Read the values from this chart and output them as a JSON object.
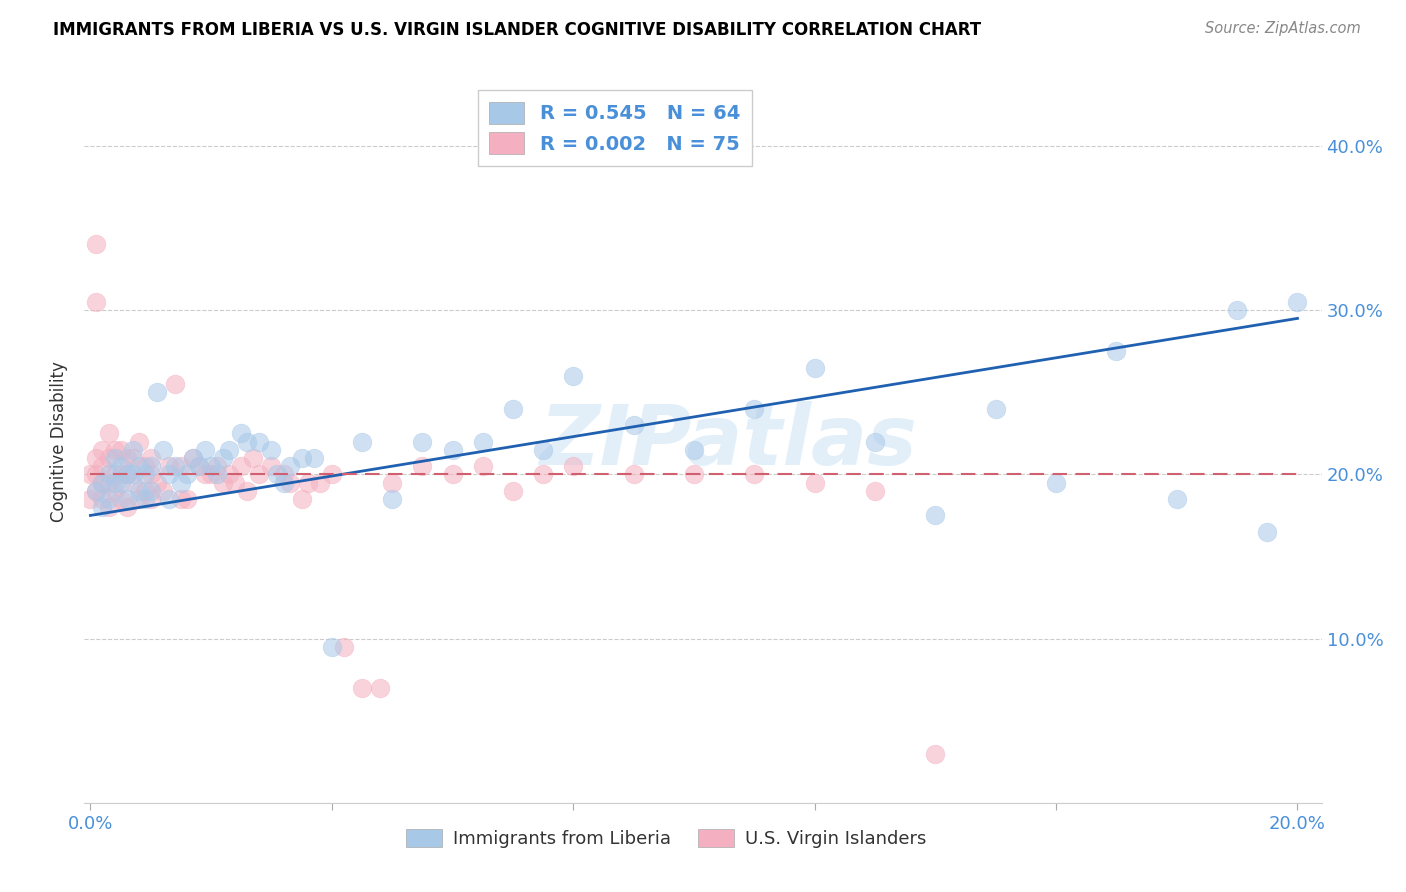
{
  "title": "IMMIGRANTS FROM LIBERIA VS U.S. VIRGIN ISLANDER COGNITIVE DISABILITY CORRELATION CHART",
  "source": "Source: ZipAtlas.com",
  "ylabel_label": "Cognitive Disability",
  "xlim": [
    -0.001,
    0.204
  ],
  "ylim": [
    0.0,
    0.44
  ],
  "blue_color": "#a8c8e8",
  "pink_color": "#f4b0c0",
  "trend_blue": "#2060b0",
  "trend_pink": "#d06070",
  "axis_color": "#4a90d9",
  "text_color": "#333333",
  "watermark": "ZIPatlas",
  "legend_R_blue": "0.545",
  "legend_N_blue": "64",
  "legend_R_pink": "0.002",
  "legend_N_pink": "75",
  "blue_x": [
    0.001,
    0.002,
    0.002,
    0.003,
    0.003,
    0.004,
    0.004,
    0.005,
    0.005,
    0.006,
    0.006,
    0.007,
    0.007,
    0.008,
    0.008,
    0.009,
    0.009,
    0.01,
    0.01,
    0.011,
    0.012,
    0.013,
    0.013,
    0.014,
    0.015,
    0.016,
    0.017,
    0.018,
    0.019,
    0.02,
    0.021,
    0.022,
    0.023,
    0.025,
    0.026,
    0.028,
    0.03,
    0.031,
    0.032,
    0.033,
    0.035,
    0.037,
    0.04,
    0.045,
    0.05,
    0.055,
    0.06,
    0.065,
    0.07,
    0.075,
    0.08,
    0.09,
    0.1,
    0.11,
    0.12,
    0.13,
    0.14,
    0.15,
    0.16,
    0.17,
    0.18,
    0.19,
    0.195,
    0.2
  ],
  "blue_y": [
    0.19,
    0.195,
    0.18,
    0.2,
    0.185,
    0.21,
    0.195,
    0.205,
    0.195,
    0.2,
    0.185,
    0.215,
    0.2,
    0.205,
    0.19,
    0.2,
    0.185,
    0.205,
    0.19,
    0.25,
    0.215,
    0.2,
    0.185,
    0.205,
    0.195,
    0.2,
    0.21,
    0.205,
    0.215,
    0.205,
    0.2,
    0.21,
    0.215,
    0.225,
    0.22,
    0.22,
    0.215,
    0.2,
    0.195,
    0.205,
    0.21,
    0.21,
    0.095,
    0.22,
    0.185,
    0.22,
    0.215,
    0.22,
    0.24,
    0.215,
    0.26,
    0.23,
    0.215,
    0.24,
    0.265,
    0.22,
    0.175,
    0.24,
    0.195,
    0.275,
    0.185,
    0.3,
    0.165,
    0.305
  ],
  "pink_x": [
    0.0,
    0.0,
    0.001,
    0.001,
    0.001,
    0.001,
    0.001,
    0.002,
    0.002,
    0.002,
    0.002,
    0.003,
    0.003,
    0.003,
    0.003,
    0.004,
    0.004,
    0.004,
    0.005,
    0.005,
    0.005,
    0.006,
    0.006,
    0.006,
    0.007,
    0.007,
    0.008,
    0.008,
    0.009,
    0.009,
    0.01,
    0.01,
    0.01,
    0.011,
    0.012,
    0.013,
    0.014,
    0.015,
    0.015,
    0.016,
    0.017,
    0.018,
    0.019,
    0.02,
    0.021,
    0.022,
    0.023,
    0.024,
    0.025,
    0.026,
    0.027,
    0.028,
    0.03,
    0.032,
    0.033,
    0.035,
    0.036,
    0.038,
    0.04,
    0.042,
    0.045,
    0.048,
    0.05,
    0.055,
    0.06,
    0.065,
    0.07,
    0.075,
    0.08,
    0.09,
    0.1,
    0.11,
    0.12,
    0.13,
    0.14
  ],
  "pink_y": [
    0.2,
    0.185,
    0.34,
    0.305,
    0.21,
    0.2,
    0.19,
    0.215,
    0.205,
    0.195,
    0.185,
    0.225,
    0.21,
    0.195,
    0.18,
    0.215,
    0.2,
    0.19,
    0.215,
    0.2,
    0.185,
    0.21,
    0.2,
    0.18,
    0.21,
    0.195,
    0.22,
    0.185,
    0.205,
    0.19,
    0.21,
    0.2,
    0.185,
    0.195,
    0.19,
    0.205,
    0.255,
    0.205,
    0.185,
    0.185,
    0.21,
    0.205,
    0.2,
    0.2,
    0.205,
    0.195,
    0.2,
    0.195,
    0.205,
    0.19,
    0.21,
    0.2,
    0.205,
    0.2,
    0.195,
    0.185,
    0.195,
    0.195,
    0.2,
    0.095,
    0.07,
    0.07,
    0.195,
    0.205,
    0.2,
    0.205,
    0.19,
    0.2,
    0.205,
    0.2,
    0.2,
    0.2,
    0.195,
    0.19,
    0.03
  ]
}
